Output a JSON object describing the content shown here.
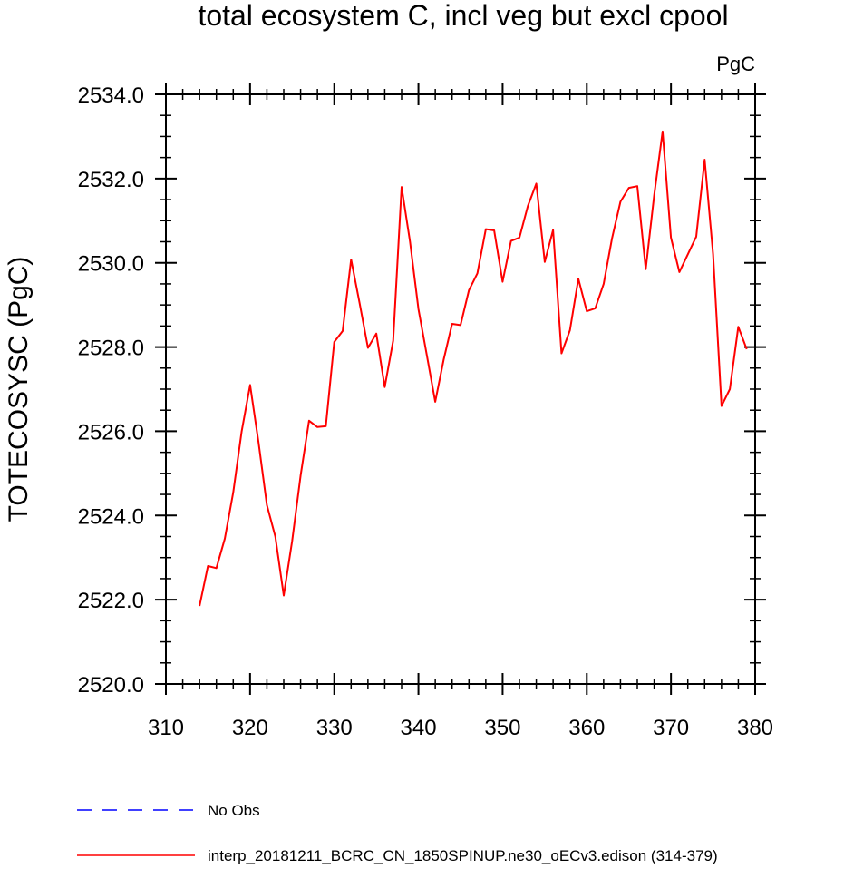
{
  "chart_data": {
    "type": "line",
    "title": "total ecosystem C, incl veg but excl cpool",
    "units": "PgC",
    "ylabel": "TOTECOSYSC  (PgC)",
    "xlabel": "",
    "xlim": [
      310,
      380
    ],
    "ylim": [
      2520,
      2534
    ],
    "xticks": [
      310,
      320,
      330,
      340,
      350,
      360,
      370,
      380
    ],
    "xtick_labels": [
      "310",
      "320",
      "330",
      "340",
      "350",
      "360",
      "370",
      "380"
    ],
    "yticks": [
      2520,
      2522,
      2524,
      2526,
      2528,
      2530,
      2532,
      2534
    ],
    "ytick_labels": [
      "2520.0",
      "2522.0",
      "2524.0",
      "2526.0",
      "2528.0",
      "2530.0",
      "2532.0",
      "2534.0"
    ],
    "legend": {
      "placement": "bottom",
      "entries": [
        {
          "label": "No Obs",
          "color": "#0000ff",
          "dash": "dashed"
        },
        {
          "label": "interp_20181211_BCRC_CN_1850SPINUP.ne30_oECv3.edison (314-379)",
          "color": "#ff0000",
          "dash": "solid"
        }
      ]
    },
    "series": [
      {
        "color": "#ff0000",
        "x": [
          314,
          315,
          316,
          317,
          318,
          319,
          320,
          321,
          322,
          323,
          324,
          325,
          326,
          327,
          328,
          329,
          330,
          331,
          332,
          333,
          334,
          335,
          336,
          337,
          338,
          339,
          340,
          341,
          342,
          343,
          344,
          345,
          346,
          347,
          348,
          349,
          350,
          351,
          352,
          353,
          354,
          355,
          356,
          357,
          358,
          359,
          360,
          361,
          362,
          363,
          364,
          365,
          366,
          367,
          368,
          369,
          370,
          371,
          372,
          373,
          374,
          375,
          376,
          377,
          378,
          379
        ],
        "values": [
          2521.85,
          2522.8,
          2522.75,
          2523.45,
          2524.55,
          2526.0,
          2527.1,
          2525.75,
          2524.25,
          2523.5,
          2522.1,
          2523.4,
          2524.95,
          2526.25,
          2526.1,
          2526.12,
          2528.12,
          2528.38,
          2530.08,
          2529.05,
          2527.98,
          2528.32,
          2527.05,
          2528.15,
          2531.8,
          2530.5,
          2528.9,
          2527.8,
          2526.7,
          2527.7,
          2528.55,
          2528.52,
          2529.35,
          2529.75,
          2530.8,
          2530.77,
          2529.55,
          2530.52,
          2530.6,
          2531.35,
          2531.88,
          2530.02,
          2530.78,
          2527.85,
          2528.4,
          2529.62,
          2528.85,
          2528.92,
          2529.5,
          2530.58,
          2531.45,
          2531.78,
          2531.82,
          2529.85,
          2531.6,
          2533.12,
          2530.6,
          2529.78,
          2530.2,
          2530.62,
          2532.45,
          2530.2,
          2526.6,
          2527.0,
          2528.48,
          2527.95
        ]
      }
    ]
  }
}
